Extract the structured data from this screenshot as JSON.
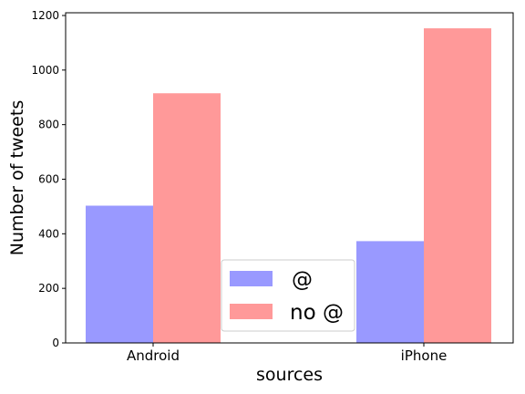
{
  "chart_data": {
    "type": "bar",
    "categories": [
      "Android",
      "iPhone"
    ],
    "series": [
      {
        "name": "@",
        "values": [
          503,
          373
        ],
        "color": "#9999ff"
      },
      {
        "name": "no @",
        "values": [
          915,
          1153
        ],
        "color": "#ff9999"
      }
    ],
    "xlabel": "sources",
    "ylabel": "Number of tweets",
    "ylim": [
      0,
      1210
    ],
    "yticks": [
      0,
      200,
      400,
      600,
      800,
      1000,
      1200
    ],
    "grid": false,
    "legend_position": "lower-center"
  }
}
